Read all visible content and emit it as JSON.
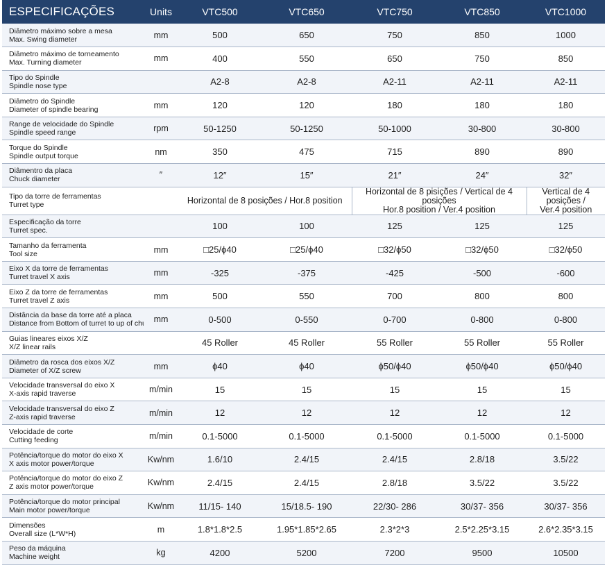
{
  "header": {
    "title": "ESPECIFICAÇÕES",
    "units": "Units",
    "models": [
      "VTC500",
      "VTC650",
      "VTC750",
      "VTC850",
      "VTC1000"
    ]
  },
  "rows": [
    {
      "pt": "Diâmetro máximo sobre a mesa",
      "en": "Max. Swing diameter",
      "unit": "mm",
      "values": [
        "500",
        "650",
        "750",
        "850",
        "1000"
      ]
    },
    {
      "pt": "Diâmetro máximo de torneamento",
      "en": "Max. Turning diameter",
      "unit": "mm",
      "values": [
        "400",
        "550",
        "650",
        "750",
        "850"
      ]
    },
    {
      "pt": "Tipo do Spindle",
      "en": "Spindle nose type",
      "unit": "",
      "values": [
        "A2-8",
        "A2-8",
        "A2-11",
        "A2-11",
        "A2-11"
      ]
    },
    {
      "pt": "Diâmetro do Spindle",
      "en": "Diameter of spindle bearing",
      "unit": "mm",
      "values": [
        "120",
        "120",
        "180",
        "180",
        "180"
      ]
    },
    {
      "pt": "Range de velocidade do Spindle",
      "en": "Spindle speed range",
      "unit": "rpm",
      "values": [
        "50-1250",
        "50-1250",
        "50-1000",
        "30-800",
        "30-800"
      ]
    },
    {
      "pt": "Torque do Spindle",
      "en": "Spindle output torque",
      "unit": "nm",
      "values": [
        "350",
        "475",
        "715",
        "890",
        "890"
      ]
    },
    {
      "pt": "Diâmentro da placa",
      "en": "Chuck diameter",
      "unit": "″",
      "values": [
        "12″",
        "15″",
        "21″",
        "24″",
        "32″"
      ]
    },
    {
      "pt": "Tipo da torre de ferramentas",
      "en": "Turret type",
      "unit": "",
      "turret": [
        "Horizontal de 8 posições / Hor.8 position",
        "Horizontal de 8 pisições / Vertical de 4 posições",
        "Hor.8 position / Ver.4 position",
        "Vertical de 4 posições /",
        "Ver.4 position"
      ]
    },
    {
      "pt": "Especificação da torre",
      "en": "Turret spec.",
      "unit": "",
      "values": [
        "100",
        "100",
        "125",
        "125",
        "125"
      ]
    },
    {
      "pt": "Tamanho da ferramenta",
      "en": "Tool size",
      "unit": "mm",
      "values": [
        "□25/ϕ40",
        "□25/ϕ40",
        "□32/ϕ50",
        "□32/ϕ50",
        "□32/ϕ50"
      ]
    },
    {
      "pt": "Eixo X da torre de ferramentas",
      "en": "Turret travel X axis",
      "unit": "mm",
      "values": [
        "-325",
        "-375",
        "-425",
        "-500",
        "-600"
      ]
    },
    {
      "pt": "Eixo Z da torre de ferramentas",
      "en": "Turret travel Z axis",
      "unit": "mm",
      "values": [
        "500",
        "550",
        "700",
        "800",
        "800"
      ]
    },
    {
      "pt": "Distância da base da torre até a placa",
      "en": "Distance from Bottom of turret to up of chuck",
      "unit": "mm",
      "values": [
        "0-500",
        "0-550",
        "0-700",
        "0-800",
        "0-800"
      ]
    },
    {
      "pt": "Guias lineares eixos X/Z",
      "en": "X/Z linear rails",
      "unit": "",
      "values": [
        "45 Roller",
        "45 Roller",
        "55 Roller",
        "55 Roller",
        "55 Roller"
      ]
    },
    {
      "pt": "Diâmetro da rosca dos eixos X/Z",
      "en": "Diameter of X/Z screw",
      "unit": "mm",
      "values": [
        "ϕ40",
        "ϕ40",
        "ϕ50/ϕ40",
        "ϕ50/ϕ40",
        "ϕ50/ϕ40"
      ]
    },
    {
      "pt": "Velocidade transversal do eixo X",
      "en": " X-axis rapid traverse",
      "unit": "m/min",
      "values": [
        "15",
        "15",
        "15",
        "15",
        "15"
      ]
    },
    {
      "pt": "Velocidade transversal do eixo Z",
      "en": "Z-axis rapid traverse",
      "unit": "m/min",
      "values": [
        "12",
        "12",
        "12",
        "12",
        "12"
      ]
    },
    {
      "pt": "Velocidade de corte",
      "en": "Cutting feeding",
      "unit": "m/min",
      "values": [
        "0.1-5000",
        "0.1-5000",
        "0.1-5000",
        "0.1-5000",
        "0.1-5000"
      ]
    },
    {
      "pt": "Potência/torque do motor do eixo X",
      "en": "X axis motor power/torque",
      "unit": "Kw/nm",
      "values": [
        "1.6/10",
        "2.4/15",
        "2.4/15",
        "2.8/18",
        "3.5/22"
      ]
    },
    {
      "pt": "Potência/torque do motor do eixo Z",
      "en": "Z axis motor power/torque",
      "unit": "Kw/nm",
      "values": [
        "2.4/15",
        "2.4/15",
        "2.8/18",
        "3.5/22",
        "3.5/22"
      ]
    },
    {
      "pt": "Potência/torque do motor principal",
      "en": "Main motor power/torque",
      "unit": "Kw/nm",
      "values": [
        "11/15- 140",
        "15/18.5- 190",
        "22/30- 286",
        "30/37- 356",
        "30/37- 356"
      ]
    },
    {
      "pt": "Dimensões",
      "en": "Overall size (L*W*H)",
      "unit": "m",
      "values": [
        "1.8*1.8*2.5",
        "1.95*1.85*2.65",
        "2.3*2*3",
        "2.5*2.25*3.15",
        "2.6*2.35*3.15"
      ]
    },
    {
      "pt": "Peso da máquina",
      "en": "Machine weight",
      "unit": "kg",
      "values": [
        "4200",
        "5200",
        "7200",
        "9500",
        "10500"
      ]
    }
  ]
}
